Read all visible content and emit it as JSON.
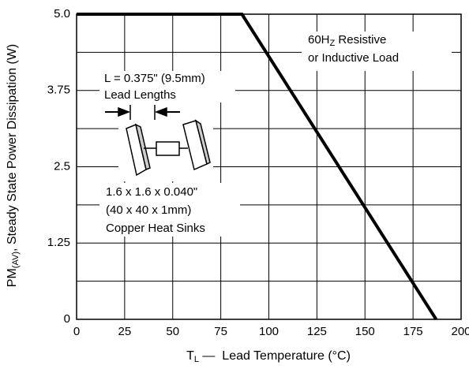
{
  "chart_data": {
    "type": "line",
    "x_label": {
      "main": "T",
      "sub": "L",
      "rest": " —  Lead Temperature (°C)"
    },
    "y_label": {
      "main": "PM",
      "sub": "(AV)",
      "rest": ", Steady State Power Dissipation (W)"
    },
    "x": [
      0,
      86,
      187
    ],
    "series": [
      {
        "values": [
          5,
          5,
          0
        ],
        "color": "#000000"
      }
    ],
    "xlim": [
      0,
      200
    ],
    "ylim": [
      0,
      5
    ],
    "xticks": [
      0,
      25,
      50,
      75,
      100,
      125,
      150,
      175,
      200
    ],
    "yticks": [
      0,
      1.25,
      2.5,
      3.75,
      {
        "value": 5,
        "label": "5.0"
      }
    ],
    "y_minor_grid": [
      0.625,
      1.875,
      3.125,
      4.375
    ],
    "grid": true,
    "annotations": {
      "load": {
        "a": "60H",
        "sub": "Z",
        "b": " Resistive",
        "line2": "or Inductive Load"
      },
      "lead": [
        "L = 0.375\" (9.5mm)",
        "Lead Lengths"
      ],
      "heatsink": [
        "1.6 x 1.6 x 0.040\"",
        "(40 x 40 x 1mm)",
        "Copper Heat Sinks"
      ]
    }
  }
}
